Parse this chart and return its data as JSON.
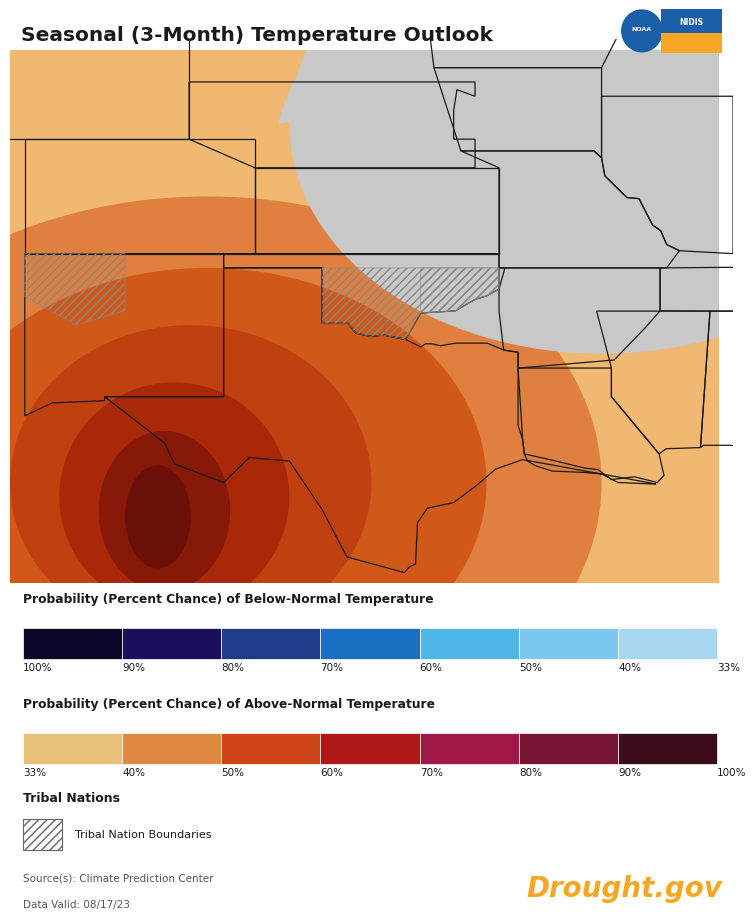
{
  "title": "Seasonal (3-Month) Temperature Outlook",
  "background_color": "#ffffff",
  "below_normal_colors": [
    "#0d0628",
    "#1b0e5c",
    "#1e3c8a",
    "#1a6fc4",
    "#4db8e8",
    "#7ac8ef",
    "#a8d8f0"
  ],
  "below_normal_labels": [
    "100%",
    "90%",
    "80%",
    "70%",
    "60%",
    "50%",
    "40%",
    "33%"
  ],
  "above_normal_colors": [
    "#e8c07a",
    "#e08840",
    "#cc4418",
    "#b01818",
    "#a01848",
    "#781535",
    "#3c0c18"
  ],
  "above_normal_labels": [
    "33%",
    "40%",
    "50%",
    "60%",
    "70%",
    "80%",
    "90%",
    "100%"
  ],
  "legend_below_title": "Probability (Percent Chance) of Below-Normal Temperature",
  "legend_above_title": "Probability (Percent Chance) of Above-Normal Temperature",
  "tribal_title": "Tribal Nations",
  "tribal_label": "Tribal Nation Boundaries",
  "source_text": "Source(s): Climate Prediction Center",
  "date_text": "Data Valid: 08/17/23",
  "drought_text": "Drought.gov",
  "drought_color": "#f5a623",
  "ec_color": "#c8c8c8",
  "zone_33_color": "#f0b870",
  "zone_40_color": "#e08040",
  "zone_50_color": "#d05818",
  "zone_60_color": "#c04010",
  "zone_70_color": "#a82808",
  "zone_80_color": "#881808",
  "zone_90_color": "#6a1008"
}
